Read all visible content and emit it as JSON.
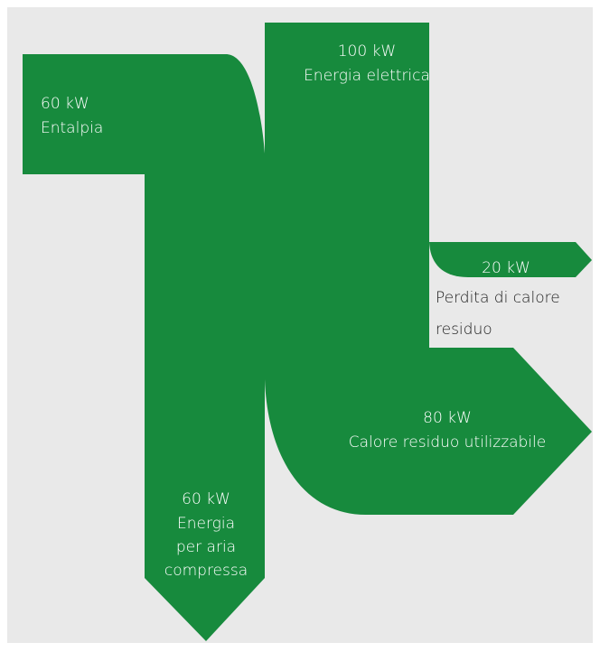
{
  "flows": [
    {
      "amount": "60 kW",
      "label": [
        "Entalpia"
      ]
    },
    {
      "amount": "100 kW",
      "label": [
        "Energia elettrica"
      ]
    },
    {
      "amount": "20 kW",
      "label": [
        "Perdita di calore",
        "residuo"
      ]
    },
    {
      "amount": "80 kW",
      "label": [
        "Calore residuo utilizzabile"
      ]
    },
    {
      "amount": "60 kW",
      "label": [
        "Energia",
        "per aria",
        "compressa"
      ]
    }
  ]
}
